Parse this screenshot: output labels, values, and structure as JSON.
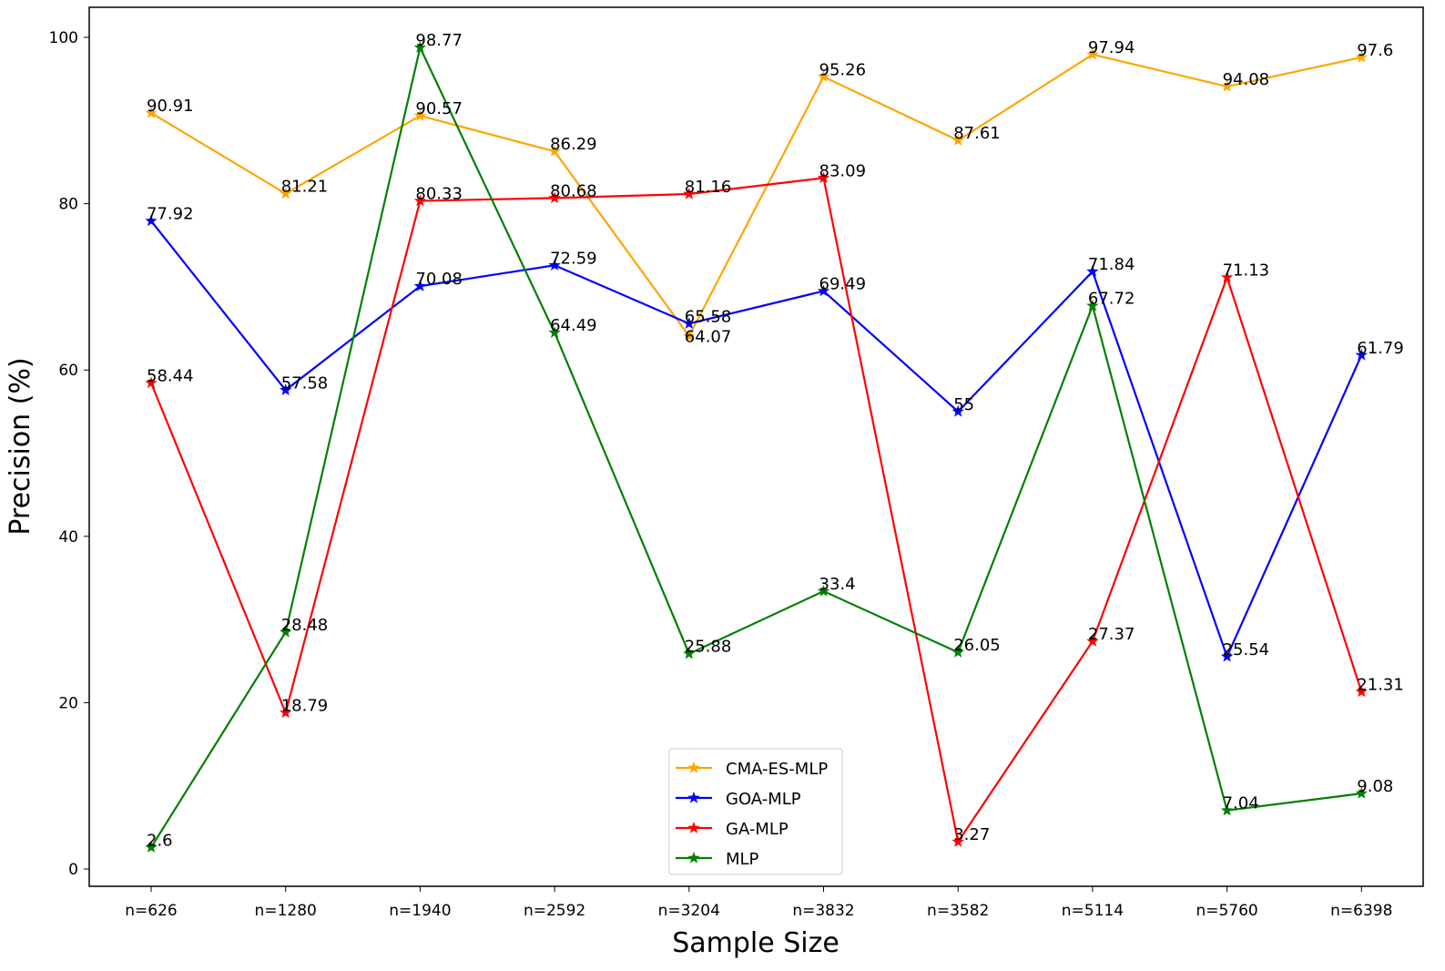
{
  "chart_data": {
    "type": "line",
    "title": "",
    "xlabel": "Sample Size",
    "ylabel": "Precision (%)",
    "categories": [
      "n=626",
      "n=1280",
      "n=1940",
      "n=2592",
      "n=3204",
      "n=3832",
      "n=3582",
      "n=5114",
      "n=5760",
      "n=6398"
    ],
    "ylim": [
      -2.1,
      103.6
    ],
    "yticks": [
      0,
      20,
      40,
      60,
      80,
      100
    ],
    "grid": false,
    "legend_position": "lower-center",
    "marker": "star",
    "series": [
      {
        "name": "CMA-ES-MLP",
        "color": "#FFA500",
        "values": [
          90.91,
          81.21,
          90.57,
          86.29,
          64.07,
          95.26,
          87.61,
          97.94,
          94.08,
          97.6
        ]
      },
      {
        "name": "GOA-MLP",
        "color": "#0000FF",
        "values": [
          77.92,
          57.58,
          70.08,
          72.59,
          65.58,
          69.49,
          55,
          71.84,
          25.54,
          61.79
        ]
      },
      {
        "name": "GA-MLP",
        "color": "#FF0000",
        "values": [
          58.44,
          18.79,
          80.33,
          80.68,
          81.16,
          83.09,
          3.27,
          27.37,
          71.13,
          21.31
        ]
      },
      {
        "name": "MLP",
        "color": "#008000",
        "values": [
          2.6,
          28.48,
          98.77,
          64.49,
          25.88,
          33.4,
          26.05,
          67.72,
          7.04,
          9.08
        ]
      }
    ]
  }
}
